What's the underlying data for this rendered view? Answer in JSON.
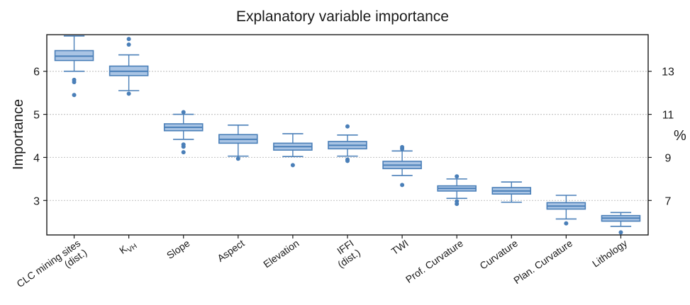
{
  "chart_data": {
    "type": "boxplot",
    "title": "Explanatory variable importance",
    "ylabel": "Importance",
    "y2label": "%",
    "ylim": [
      2.2,
      6.85
    ],
    "yticks": [
      "3",
      "4",
      "5",
      "6"
    ],
    "y2ticks": [
      "7",
      "9",
      "11",
      "13"
    ],
    "y2tick_positions": [
      3.0,
      4.0,
      5.0,
      6.0
    ],
    "grid": true,
    "color": "#4a7fb8",
    "fill": "#a9c4e4",
    "categories": [
      {
        "label": [
          "CLC mining sites",
          "(dist.)"
        ],
        "min": 6.0,
        "q1": 6.25,
        "median": 6.35,
        "q3": 6.48,
        "max": 6.82,
        "outliers": [
          5.8,
          5.75,
          5.45
        ]
      },
      {
        "label": [
          "K",
          "VH"
        ],
        "min": 5.55,
        "q1": 5.9,
        "median": 6.0,
        "q3": 6.12,
        "max": 6.38,
        "outliers": [
          6.75,
          6.62,
          5.48
        ]
      },
      {
        "label": [
          "Slope"
        ],
        "min": 4.42,
        "q1": 4.62,
        "median": 4.7,
        "q3": 4.78,
        "max": 5.0,
        "outliers": [
          5.05,
          4.3,
          4.25,
          4.12
        ]
      },
      {
        "label": [
          "Aspect"
        ],
        "min": 4.03,
        "q1": 4.33,
        "median": 4.42,
        "q3": 4.53,
        "max": 4.75,
        "outliers": [
          3.97
        ]
      },
      {
        "label": [
          "Elevation"
        ],
        "min": 4.02,
        "q1": 4.17,
        "median": 4.25,
        "q3": 4.33,
        "max": 4.55,
        "outliers": [
          3.82
        ]
      },
      {
        "label": [
          "IFFI",
          "(dist.)"
        ],
        "min": 4.03,
        "q1": 4.2,
        "median": 4.28,
        "q3": 4.37,
        "max": 4.52,
        "outliers": [
          4.72,
          3.95,
          3.92
        ]
      },
      {
        "label": [
          "TWI"
        ],
        "min": 3.58,
        "q1": 3.74,
        "median": 3.82,
        "q3": 3.91,
        "max": 4.15,
        "outliers": [
          4.24,
          4.2,
          3.36
        ]
      },
      {
        "label": [
          "Prof. Curvature"
        ],
        "min": 3.05,
        "q1": 3.22,
        "median": 3.28,
        "q3": 3.34,
        "max": 3.5,
        "outliers": [
          3.56,
          2.98,
          2.92
        ]
      },
      {
        "label": [
          "Curvature"
        ],
        "min": 2.96,
        "q1": 3.15,
        "median": 3.22,
        "q3": 3.3,
        "max": 3.43,
        "outliers": []
      },
      {
        "label": [
          "Plan. Curvature"
        ],
        "min": 2.57,
        "q1": 2.8,
        "median": 2.87,
        "q3": 2.95,
        "max": 3.12,
        "outliers": [
          2.47
        ]
      },
      {
        "label": [
          "Lithology"
        ],
        "min": 2.4,
        "q1": 2.52,
        "median": 2.59,
        "q3": 2.65,
        "max": 2.72,
        "outliers": [
          2.26
        ]
      }
    ]
  }
}
